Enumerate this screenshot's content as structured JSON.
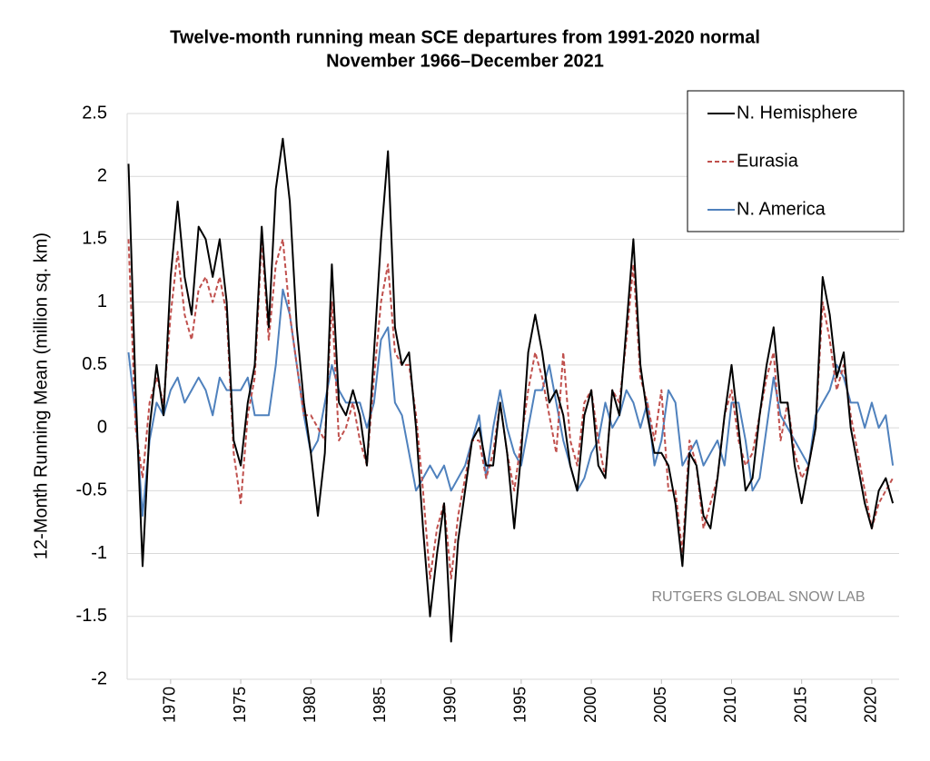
{
  "chart_data": {
    "type": "line",
    "title": "Twelve-month running mean SCE departures from 1991-2020 normal",
    "subtitle": "November 1966–December 2021",
    "y_label": "12-Month Running Mean (million sq. km)",
    "annotation": "RUTGERS GLOBAL SNOW LAB",
    "x": [
      1967.0,
      1967.5,
      1968.0,
      1968.5,
      1969.0,
      1969.5,
      1970.0,
      1970.5,
      1971.0,
      1971.5,
      1972.0,
      1972.5,
      1973.0,
      1973.5,
      1974.0,
      1974.5,
      1975.0,
      1975.5,
      1976.0,
      1976.5,
      1977.0,
      1977.5,
      1978.0,
      1978.5,
      1979.0,
      1979.5,
      1980.0,
      1980.5,
      1981.0,
      1981.5,
      1982.0,
      1982.5,
      1983.0,
      1983.5,
      1984.0,
      1984.5,
      1985.0,
      1985.5,
      1986.0,
      1986.5,
      1987.0,
      1987.5,
      1988.0,
      1988.5,
      1989.0,
      1989.5,
      1990.0,
      1990.5,
      1991.0,
      1991.5,
      1992.0,
      1992.5,
      1993.0,
      1993.5,
      1994.0,
      1994.5,
      1995.0,
      1995.5,
      1996.0,
      1996.5,
      1997.0,
      1997.5,
      1998.0,
      1998.5,
      1999.0,
      1999.5,
      2000.0,
      2000.5,
      2001.0,
      2001.5,
      2002.0,
      2002.5,
      2003.0,
      2003.5,
      2004.0,
      2004.5,
      2005.0,
      2005.5,
      2006.0,
      2006.5,
      2007.0,
      2007.5,
      2008.0,
      2008.5,
      2009.0,
      2009.5,
      2010.0,
      2010.5,
      2011.0,
      2011.5,
      2012.0,
      2012.5,
      2013.0,
      2013.5,
      2014.0,
      2014.5,
      2015.0,
      2015.5,
      2016.0,
      2016.5,
      2017.0,
      2017.5,
      2018.0,
      2018.5,
      2019.0,
      2019.5,
      2020.0,
      2020.5,
      2021.0,
      2021.5
    ],
    "series": [
      {
        "name": "N. Hemisphere",
        "color": "#000000",
        "style": "solid",
        "values": [
          2.1,
          0.3,
          -1.1,
          0.0,
          0.5,
          0.1,
          1.2,
          1.8,
          1.2,
          0.9,
          1.6,
          1.5,
          1.2,
          1.5,
          1.0,
          -0.1,
          -0.3,
          0.2,
          0.5,
          1.6,
          0.8,
          1.9,
          2.3,
          1.8,
          0.8,
          0.2,
          -0.2,
          -0.7,
          -0.2,
          1.3,
          0.2,
          0.1,
          0.3,
          0.1,
          -0.3,
          0.6,
          1.5,
          2.2,
          0.8,
          0.5,
          0.6,
          0.0,
          -0.8,
          -1.5,
          -1.0,
          -0.6,
          -1.7,
          -0.9,
          -0.5,
          -0.1,
          0.0,
          -0.3,
          -0.3,
          0.2,
          -0.2,
          -0.8,
          -0.2,
          0.6,
          0.9,
          0.6,
          0.2,
          0.3,
          0.1,
          -0.3,
          -0.5,
          0.1,
          0.3,
          -0.3,
          -0.4,
          0.3,
          0.1,
          0.8,
          1.5,
          0.5,
          0.1,
          -0.2,
          -0.2,
          -0.3,
          -0.6,
          -1.1,
          -0.2,
          -0.3,
          -0.7,
          -0.8,
          -0.4,
          0.1,
          0.5,
          0.0,
          -0.5,
          -0.4,
          0.1,
          0.5,
          0.8,
          0.2,
          0.2,
          -0.3,
          -0.6,
          -0.3,
          0.0,
          1.2,
          0.9,
          0.4,
          0.6,
          0.0,
          -0.3,
          -0.6,
          -0.8,
          -0.5,
          -0.4,
          -0.6
        ]
      },
      {
        "name": "Eurasia",
        "color": "#c0504d",
        "style": "dashed",
        "values": [
          1.5,
          0.0,
          -0.4,
          0.2,
          0.4,
          0.2,
          0.9,
          1.4,
          0.9,
          0.7,
          1.1,
          1.2,
          1.0,
          1.2,
          0.9,
          -0.2,
          -0.6,
          0.1,
          0.4,
          1.5,
          0.7,
          1.3,
          1.5,
          0.9,
          0.5,
          0.1,
          0.1,
          0.0,
          -0.1,
          1.0,
          -0.1,
          0.0,
          0.2,
          -0.1,
          -0.3,
          0.4,
          1.0,
          1.3,
          0.6,
          0.5,
          0.5,
          0.1,
          -0.5,
          -1.2,
          -0.8,
          -0.6,
          -1.2,
          -0.7,
          -0.4,
          -0.1,
          -0.1,
          -0.4,
          -0.2,
          0.2,
          -0.2,
          -0.5,
          -0.1,
          0.3,
          0.6,
          0.4,
          0.1,
          -0.2,
          0.6,
          -0.1,
          -0.3,
          0.2,
          0.3,
          -0.1,
          -0.4,
          0.3,
          0.2,
          0.7,
          1.3,
          0.4,
          0.2,
          -0.1,
          0.3,
          -0.5,
          -0.5,
          -1.0,
          -0.1,
          -0.3,
          -0.8,
          -0.6,
          -0.4,
          0.1,
          0.3,
          -0.1,
          -0.3,
          -0.2,
          0.1,
          0.4,
          0.6,
          -0.1,
          0.2,
          -0.2,
          -0.4,
          -0.3,
          0.0,
          1.0,
          0.7,
          0.3,
          0.5,
          0.1,
          -0.2,
          -0.5,
          -0.8,
          -0.6,
          -0.5,
          -0.4
        ]
      },
      {
        "name": "N. America",
        "color": "#4f81bd",
        "style": "solid",
        "values": [
          0.6,
          0.1,
          -0.7,
          -0.1,
          0.2,
          0.1,
          0.3,
          0.4,
          0.2,
          0.3,
          0.4,
          0.3,
          0.1,
          0.4,
          0.3,
          0.3,
          0.3,
          0.4,
          0.1,
          0.1,
          0.1,
          0.5,
          1.1,
          0.9,
          0.5,
          0.1,
          -0.2,
          -0.1,
          0.2,
          0.5,
          0.3,
          0.2,
          0.2,
          0.2,
          0.0,
          0.2,
          0.7,
          0.8,
          0.2,
          0.1,
          -0.2,
          -0.5,
          -0.4,
          -0.3,
          -0.4,
          -0.3,
          -0.5,
          -0.4,
          -0.3,
          -0.1,
          0.1,
          -0.4,
          0.0,
          0.3,
          0.0,
          -0.2,
          -0.3,
          0.0,
          0.3,
          0.3,
          0.5,
          0.2,
          -0.1,
          -0.3,
          -0.5,
          -0.4,
          -0.2,
          -0.1,
          0.2,
          0.0,
          0.1,
          0.3,
          0.2,
          0.0,
          0.2,
          -0.3,
          -0.1,
          0.3,
          0.2,
          -0.3,
          -0.2,
          -0.1,
          -0.3,
          -0.2,
          -0.1,
          -0.3,
          0.2,
          0.2,
          -0.1,
          -0.5,
          -0.4,
          0.0,
          0.4,
          0.1,
          0.0,
          -0.1,
          -0.2,
          -0.3,
          0.1,
          0.2,
          0.3,
          0.5,
          0.4,
          0.2,
          0.2,
          0.0,
          0.2,
          0.0,
          0.1,
          -0.3
        ]
      }
    ],
    "xlim": [
      1966.9,
      2021.95
    ],
    "xticks": [
      1970,
      1975,
      1980,
      1985,
      1990,
      1995,
      2000,
      2005,
      2010,
      2015,
      2020
    ],
    "ylim": [
      -2,
      2.5
    ],
    "yticks": [
      2.5,
      2,
      1.5,
      1,
      0.5,
      0,
      -0.5,
      -1,
      -1.5,
      -2
    ],
    "grid": true,
    "legend": "upper right"
  }
}
